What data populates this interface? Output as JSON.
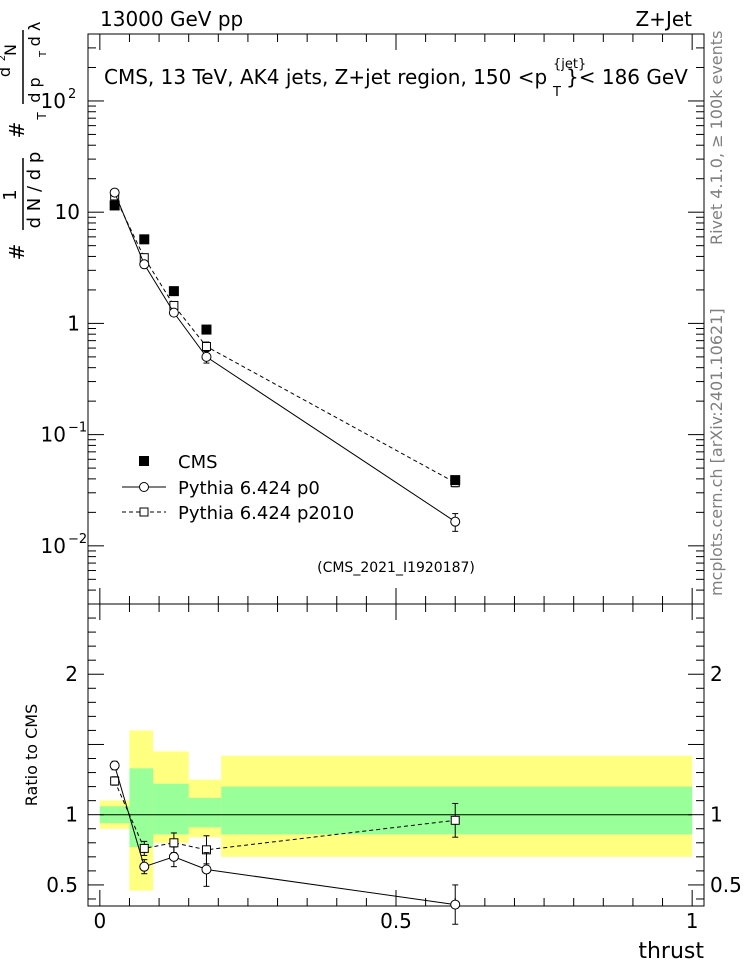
{
  "header": {
    "left": "13000 GeV pp",
    "right": "Z+Jet"
  },
  "side_labels": {
    "rivet": "Rivet 4.1.0, ≥ 100k events",
    "mcplots": "mcplots.cern.ch [arXiv:2401.10621]"
  },
  "colors": {
    "yellow_band": "#ffff80",
    "green_band": "#99ff99",
    "data_marker": "#000000",
    "mc_line": "#000000",
    "watermark": "#7f7f7f"
  },
  "chart_data": [
    {
      "type": "scatter",
      "title": "CMS, 13 TeV, AK4 jets, Z+jet region, 150 <p",
      "title_super": "{jet}",
      "title_sub": "T",
      "title_suffix": "}< 186 GeV",
      "ylabel_parts": [
        "#",
        "1",
        "d N / d p",
        "T",
        "#",
        "d",
        "2",
        "N",
        "d p",
        "T",
        "d λ"
      ],
      "yscale": "log",
      "ylim": [
        0.003,
        400
      ],
      "xlim": [
        -0.02,
        1.02
      ],
      "y_ticks": [
        {
          "value": 0.01,
          "label": "10",
          "exp": "−2"
        },
        {
          "value": 0.1,
          "label": "10",
          "exp": "−1"
        },
        {
          "value": 1,
          "label": "1",
          "exp": ""
        },
        {
          "value": 10,
          "label": "10",
          "exp": ""
        },
        {
          "value": 100,
          "label": "10",
          "exp": "2"
        }
      ],
      "legend_position": "lower-left",
      "watermark": "(CMS_2021_I1920187)",
      "series": [
        {
          "name": "CMS",
          "marker": "filled-square",
          "x": [
            0.025,
            0.075,
            0.125,
            0.18,
            0.6
          ],
          "y": [
            11.5,
            5.7,
            1.95,
            0.88,
            0.039
          ],
          "x_half_width": [
            0.025,
            0.025,
            0.025,
            0.03,
            0.4
          ]
        },
        {
          "name": "Pythia 6.424 p0",
          "marker": "open-circle",
          "line": "solid",
          "x": [
            0.025,
            0.075,
            0.125,
            0.18,
            0.6
          ],
          "y": [
            15.0,
            3.4,
            1.25,
            0.5,
            0.0165
          ],
          "y_err": [
            0.5,
            0.15,
            0.08,
            0.06,
            0.003
          ]
        },
        {
          "name": "Pythia 6.424 p2010",
          "marker": "open-square",
          "line": "dashed",
          "x": [
            0.025,
            0.075,
            0.125,
            0.18,
            0.6
          ],
          "y": [
            14.0,
            3.9,
            1.45,
            0.62,
            0.037
          ],
          "y_err": [
            0.5,
            0.15,
            0.08,
            0.06,
            0.003
          ]
        }
      ]
    },
    {
      "type": "scatter",
      "title": "",
      "ylabel": "Ratio to CMS",
      "xlabel": "thrust",
      "ylim": [
        0.35,
        2.5
      ],
      "xlim": [
        -0.02,
        1.02
      ],
      "x_ticks": [
        {
          "value": 0,
          "label": "0"
        },
        {
          "value": 0.5,
          "label": "0.5"
        },
        {
          "value": 1,
          "label": "1"
        }
      ],
      "y_ticks": [
        {
          "value": 0.5,
          "label": "0.5"
        },
        {
          "value": 1,
          "label": "1"
        },
        {
          "value": 2,
          "label": "2"
        }
      ],
      "bands": [
        {
          "x0": 0.0,
          "x1": 0.05,
          "y_lo": 0.9,
          "y_hi": 1.1,
          "g_lo": 0.94,
          "g_hi": 1.06
        },
        {
          "x0": 0.05,
          "x1": 0.09,
          "y_lo": 0.46,
          "y_hi": 1.6,
          "g_lo": 0.77,
          "g_hi": 1.33
        },
        {
          "x0": 0.09,
          "x1": 0.15,
          "y_lo": 0.8,
          "y_hi": 1.45,
          "g_lo": 0.86,
          "g_hi": 1.22
        },
        {
          "x0": 0.15,
          "x1": 0.205,
          "y_lo": 0.84,
          "y_hi": 1.25,
          "g_lo": 0.91,
          "g_hi": 1.12
        },
        {
          "x0": 0.205,
          "x1": 1.0,
          "y_lo": 0.7,
          "y_hi": 1.42,
          "g_lo": 0.86,
          "g_hi": 1.2
        }
      ],
      "series": [
        {
          "name": "Pythia 6.424 p0",
          "marker": "open-circle",
          "line": "solid",
          "x": [
            0.025,
            0.075,
            0.125,
            0.18,
            0.6
          ],
          "y": [
            1.35,
            0.63,
            0.7,
            0.61,
            0.36
          ],
          "y_err": [
            0.03,
            0.05,
            0.07,
            0.12,
            0.14
          ]
        },
        {
          "name": "Pythia 6.424 p2010",
          "marker": "open-square",
          "line": "dashed",
          "x": [
            0.025,
            0.075,
            0.125,
            0.18,
            0.6
          ],
          "y": [
            1.24,
            0.76,
            0.8,
            0.75,
            0.96
          ],
          "y_err": [
            0.03,
            0.05,
            0.07,
            0.1,
            0.12
          ]
        }
      ]
    }
  ]
}
